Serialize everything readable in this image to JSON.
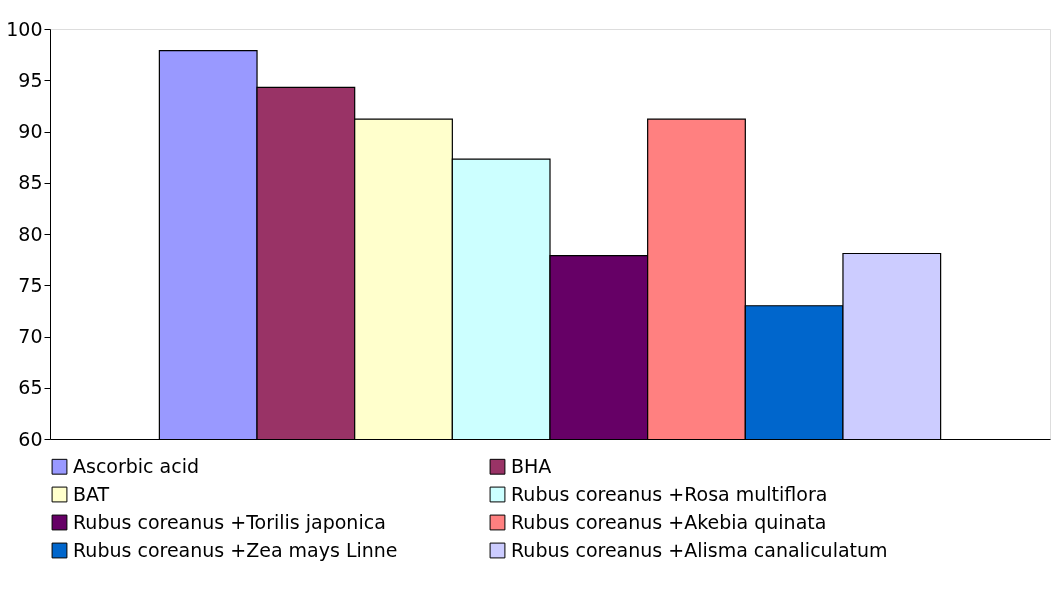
{
  "chart_data": {
    "type": "bar",
    "categories": [
      null
    ],
    "ylim": [
      60,
      100
    ],
    "yticks": [
      60,
      65,
      70,
      75,
      80,
      85,
      90,
      95,
      100
    ],
    "grid": false,
    "legend": "bottom",
    "tick_labels": "y",
    "series": [
      {
        "name": "Ascorbic acid",
        "color": "#9999ff",
        "values": [
          97.9
        ]
      },
      {
        "name": "BHA",
        "color": "#993366",
        "values": [
          94.3
        ]
      },
      {
        "name": "BAT",
        "color": "#ffffcc",
        "values": [
          91.2
        ]
      },
      {
        "name": "Rubus coreanus +Rosa multiflora",
        "color": "#ccffff",
        "values": [
          87.3
        ]
      },
      {
        "name": "Rubus coreanus +Torilis japonica",
        "color": "#660066",
        "values": [
          77.9
        ]
      },
      {
        "name": "Rubus coreanus +Akebia quinata",
        "color": "#ff8080",
        "values": [
          91.2
        ]
      },
      {
        "name": "Rubus coreanus +Zea mays Linne",
        "color": "#0066cc",
        "values": [
          73.0
        ]
      },
      {
        "name": "Rubus coreanus +Alisma canaliculatum",
        "color": "#ccccff",
        "values": [
          78.1
        ]
      }
    ]
  }
}
